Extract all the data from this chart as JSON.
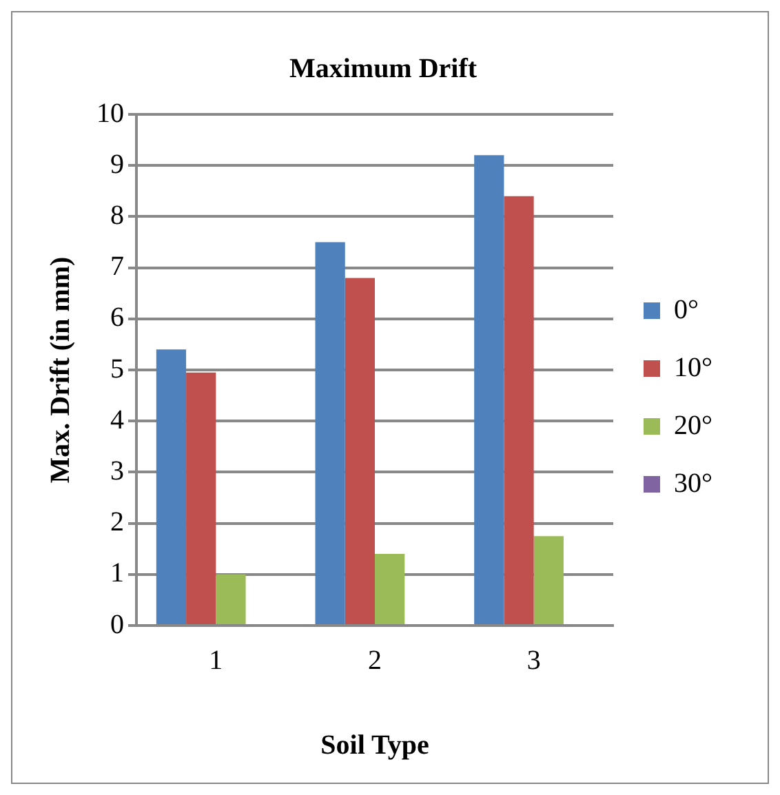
{
  "chart_data": {
    "type": "bar",
    "title": "Maximum Drift",
    "xlabel": "Soil Type",
    "ylabel": "Max. Drift (in mm)",
    "categories": [
      "1",
      "2",
      "3"
    ],
    "series": [
      {
        "name": "0°",
        "color": "#4f81bd",
        "values": [
          5.4,
          7.5,
          9.2
        ]
      },
      {
        "name": "10°",
        "color": "#c0504d",
        "values": [
          4.95,
          6.8,
          8.4
        ]
      },
      {
        "name": "20°",
        "color": "#9bbb59",
        "values": [
          1.0,
          1.4,
          1.75
        ]
      },
      {
        "name": "30°",
        "color": "#8064a2",
        "values": [
          null,
          null,
          null
        ]
      }
    ],
    "ylim": [
      0,
      10
    ],
    "yticks": [
      0,
      1,
      2,
      3,
      4,
      5,
      6,
      7,
      8,
      9,
      10
    ],
    "grid": "y",
    "legend": "right"
  }
}
